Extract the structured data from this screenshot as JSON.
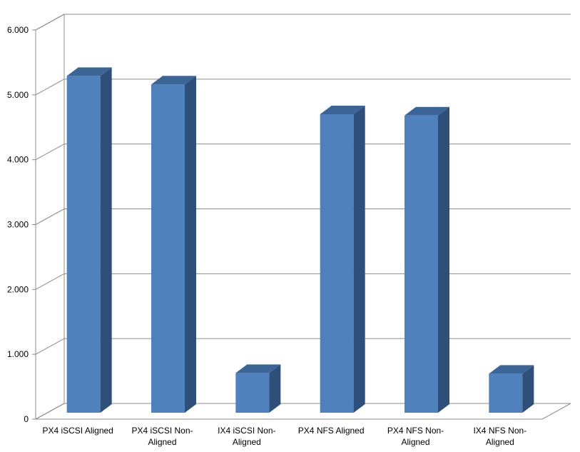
{
  "chart_data": {
    "type": "bar",
    "three_d": true,
    "categories": [
      [
        "PX4 iSCSI Aligned"
      ],
      [
        "PX4 iSCSI Non-",
        "Aligned"
      ],
      [
        "IX4 iSCSI Non-",
        "Aligned"
      ],
      [
        "PX4 NFS Aligned"
      ],
      [
        "PX4 NFS Non-",
        "Aligned"
      ],
      [
        "IX4 NFS Non-",
        "Aligned"
      ]
    ],
    "values": [
      5280,
      5150,
      700,
      4690,
      4670,
      690
    ],
    "ylim": [
      0,
      6000
    ],
    "yticks": [
      0,
      1000,
      2000,
      3000,
      4000,
      5000,
      6000
    ],
    "ytick_labels": [
      "0",
      "1.000",
      "2.000",
      "3.000",
      "4.000",
      "5.000",
      "6.000"
    ],
    "title": "",
    "xlabel": "",
    "ylabel": "",
    "grid": true,
    "legend": "none",
    "colors": {
      "bar_front": "#4f81bd",
      "bar_side": "#2e4f7a",
      "bar_top": "#3a6596",
      "gridline": "#8c8c8c",
      "wall": "#ffffff"
    }
  }
}
